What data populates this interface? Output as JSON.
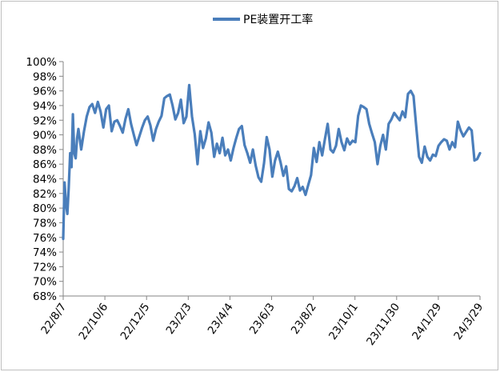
{
  "chart_data": {
    "type": "line",
    "title": "",
    "xlabel": "",
    "ylabel": "",
    "ylim": [
      68,
      100
    ],
    "y_tick_labels": [
      "68%",
      "70%",
      "72%",
      "74%",
      "76%",
      "78%",
      "80%",
      "82%",
      "84%",
      "86%",
      "88%",
      "90%",
      "92%",
      "94%",
      "96%",
      "98%",
      "100%"
    ],
    "x_tick_labels": [
      "22/8/7",
      "22/10/6",
      "22/12/5",
      "23/2/3",
      "23/4/4",
      "23/6/3",
      "23/8/2",
      "23/10/1",
      "23/11/30",
      "24/1/29",
      "24/3/29"
    ],
    "legend_position": "top",
    "grid": false,
    "series_color": "#4a7ebb",
    "series": [
      {
        "name": "PE装置开工率",
        "x": [
          "2022-08-07",
          "2022-08-09",
          "2022-08-11",
          "2022-08-13",
          "2022-08-15",
          "2022-08-17",
          "2022-08-19",
          "2022-08-21",
          "2022-08-23",
          "2022-08-25",
          "2022-08-27",
          "2022-08-29",
          "2022-09-02",
          "2022-09-06",
          "2022-09-10",
          "2022-09-14",
          "2022-09-18",
          "2022-09-22",
          "2022-09-26",
          "2022-09-30",
          "2022-10-04",
          "2022-10-08",
          "2022-10-12",
          "2022-10-16",
          "2022-10-20",
          "2022-10-24",
          "2022-10-28",
          "2022-11-01",
          "2022-11-05",
          "2022-11-09",
          "2022-11-13",
          "2022-11-17",
          "2022-11-21",
          "2022-11-25",
          "2022-11-29",
          "2022-12-03",
          "2022-12-07",
          "2022-12-11",
          "2022-12-15",
          "2022-12-19",
          "2022-12-23",
          "2022-12-27",
          "2022-12-31",
          "2023-01-04",
          "2023-01-08",
          "2023-01-12",
          "2023-01-16",
          "2023-01-20",
          "2023-01-24",
          "2023-01-28",
          "2023-02-01",
          "2023-02-05",
          "2023-02-09",
          "2023-02-13",
          "2023-02-17",
          "2023-02-21",
          "2023-02-25",
          "2023-03-01",
          "2023-03-05",
          "2023-03-09",
          "2023-03-13",
          "2023-03-17",
          "2023-03-21",
          "2023-03-25",
          "2023-03-29",
          "2023-04-02",
          "2023-04-06",
          "2023-04-10",
          "2023-04-14",
          "2023-04-18",
          "2023-04-22",
          "2023-04-26",
          "2023-04-30",
          "2023-05-04",
          "2023-05-08",
          "2023-05-12",
          "2023-05-16",
          "2023-05-20",
          "2023-05-24",
          "2023-05-28",
          "2023-06-01",
          "2023-06-05",
          "2023-06-09",
          "2023-06-13",
          "2023-06-17",
          "2023-06-21",
          "2023-06-25",
          "2023-06-29",
          "2023-07-03",
          "2023-07-07",
          "2023-07-11",
          "2023-07-15",
          "2023-07-19",
          "2023-07-23",
          "2023-07-27",
          "2023-07-31",
          "2023-08-04",
          "2023-08-08",
          "2023-08-12",
          "2023-08-16",
          "2023-08-20",
          "2023-08-24",
          "2023-08-28",
          "2023-09-01",
          "2023-09-05",
          "2023-09-09",
          "2023-09-13",
          "2023-09-17",
          "2023-09-21",
          "2023-09-25",
          "2023-09-29",
          "2023-10-03",
          "2023-10-07",
          "2023-10-11",
          "2023-10-15",
          "2023-10-19",
          "2023-10-23",
          "2023-10-27",
          "2023-10-31",
          "2023-11-04",
          "2023-11-08",
          "2023-11-12",
          "2023-11-16",
          "2023-11-20",
          "2023-11-24",
          "2023-11-28",
          "2023-12-02",
          "2023-12-06",
          "2023-12-10",
          "2023-12-14",
          "2023-12-18",
          "2023-12-22",
          "2023-12-26",
          "2023-12-30",
          "2024-01-03",
          "2024-01-07",
          "2024-01-11",
          "2024-01-15",
          "2024-01-19",
          "2024-01-23",
          "2024-01-27",
          "2024-01-31",
          "2024-02-04",
          "2024-02-08",
          "2024-02-12",
          "2024-02-16",
          "2024-02-20",
          "2024-02-24",
          "2024-02-28",
          "2024-03-03",
          "2024-03-07",
          "2024-03-11",
          "2024-03-15",
          "2024-03-19",
          "2024-03-23",
          "2024-03-27",
          "2024-03-31"
        ],
        "values": [
          75.8,
          83.5,
          80.5,
          79.2,
          82.8,
          87.5,
          85.6,
          92.8,
          87.5,
          86.8,
          89.5,
          90.8,
          88.0,
          90.5,
          92.5,
          93.8,
          94.2,
          93.0,
          94.5,
          93.2,
          91.0,
          93.5,
          94.0,
          90.5,
          91.8,
          92.0,
          91.2,
          90.3,
          92.2,
          93.5,
          91.5,
          90.0,
          88.6,
          89.8,
          91.0,
          92.0,
          92.5,
          91.3,
          89.2,
          90.8,
          91.8,
          92.6,
          95.0,
          95.3,
          95.5,
          94.0,
          92.1,
          93.0,
          94.8,
          91.6,
          92.5,
          96.8,
          92.5,
          90.1,
          86.0,
          90.5,
          88.2,
          89.5,
          91.7,
          90.3,
          87.0,
          88.8,
          87.5,
          89.6,
          87.2,
          88.0,
          86.5,
          88.2,
          89.6,
          90.8,
          91.2,
          88.6,
          87.5,
          86.2,
          88.0,
          85.8,
          84.2,
          83.6,
          86.1,
          89.7,
          88.0,
          84.3,
          86.5,
          87.7,
          86.2,
          84.4,
          85.7,
          82.6,
          82.3,
          83.0,
          84.1,
          82.4,
          82.9,
          81.8,
          83.2,
          84.5,
          88.2,
          86.3,
          89.0,
          87.2,
          89.4,
          91.5,
          88.0,
          87.6,
          88.5,
          90.8,
          89.0,
          87.9,
          89.5,
          88.7,
          89.2,
          89.0,
          92.6,
          94.0,
          93.8,
          93.5,
          91.5,
          90.2,
          89.0,
          86.0,
          88.5,
          90.0,
          88.0,
          91.5,
          92.1,
          93.0,
          92.5,
          92.0,
          93.2,
          92.4,
          95.6,
          96.0,
          95.3,
          91.0,
          87.0,
          86.2,
          88.4,
          87.0,
          86.5,
          87.3,
          87.1,
          88.5,
          89.0,
          89.4,
          89.2,
          88.0,
          89.0,
          88.3,
          91.8,
          90.6,
          89.8,
          90.4,
          91.0,
          90.6,
          86.5,
          86.7,
          87.5
        ]
      }
    ]
  }
}
